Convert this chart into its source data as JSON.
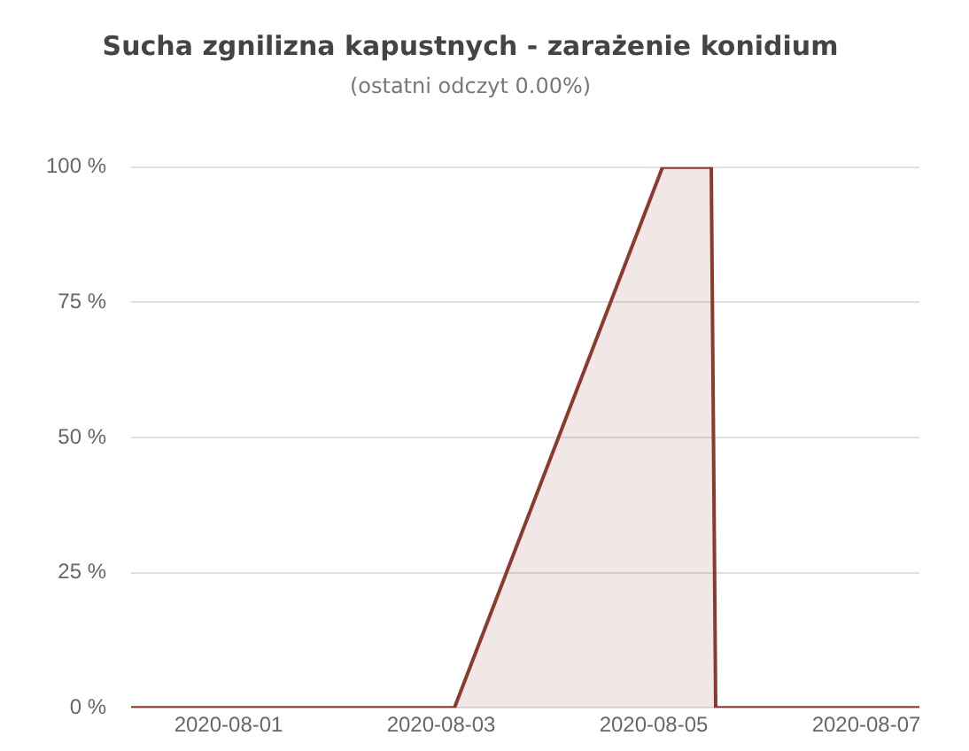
{
  "chart_data": {
    "type": "area",
    "title": "Sucha zgnilizna kapustnych - zarażenie konidium",
    "subtitle": "(ostatni odczyt 0.00%)",
    "x": [
      "2020-07-31T02:00",
      "2020-08-03T03:00",
      "2020-08-05T02:00",
      "2020-08-05T13:00",
      "2020-08-05T14:00",
      "2020-08-07T12:00"
    ],
    "series": [
      {
        "color": "#8b3a2e",
        "values": [
          0,
          0,
          100,
          100,
          0,
          0
        ]
      }
    ],
    "xlim": [
      "2020-07-31T02:00",
      "2020-08-07T12:00"
    ],
    "xticks": [
      "2020-08-01",
      "2020-08-03",
      "2020-08-05",
      "2020-08-07"
    ],
    "ylim": [
      0,
      100
    ],
    "yticks": [
      {
        "value": 0,
        "label": "0 %"
      },
      {
        "value": 25,
        "label": "25 %"
      },
      {
        "value": 50,
        "label": "50 %"
      },
      {
        "value": 75,
        "label": "75 %"
      },
      {
        "value": 100,
        "label": "100 %"
      }
    ],
    "grid": "y",
    "legend": false,
    "marker": "none"
  }
}
